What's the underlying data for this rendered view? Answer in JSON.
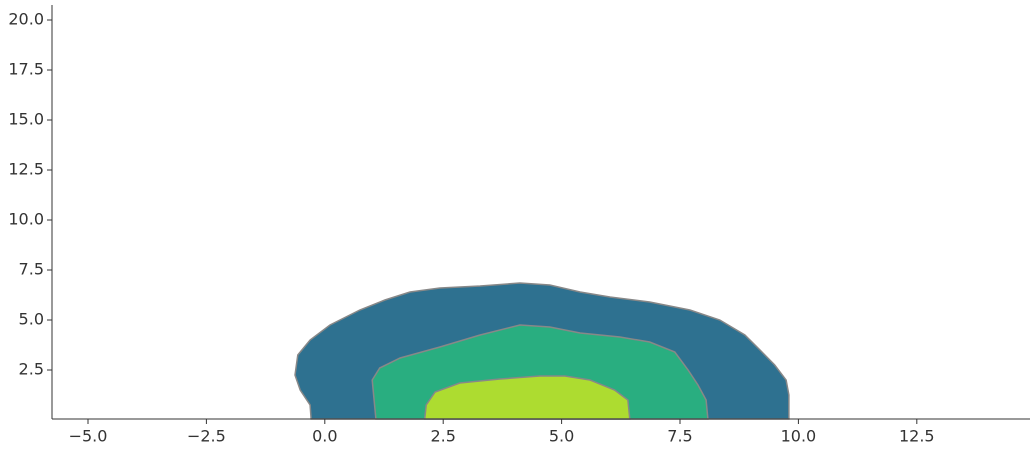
{
  "chart_data": {
    "type": "contour",
    "xlim": [
      -5.76,
      14.89
    ],
    "ylim": [
      0.05,
      20.75
    ],
    "xticks": [
      {
        "value": -5,
        "label": "−5.0"
      },
      {
        "value": -2.5,
        "label": "−2.5"
      },
      {
        "value": 0,
        "label": "0.0"
      },
      {
        "value": 2.5,
        "label": "2.5"
      },
      {
        "value": 5,
        "label": "5.0"
      },
      {
        "value": 7.5,
        "label": "7.5"
      },
      {
        "value": 10,
        "label": "10.0"
      },
      {
        "value": 12.5,
        "label": "12.5"
      }
    ],
    "yticks": [
      {
        "value": 2.5,
        "label": "2.5"
      },
      {
        "value": 5,
        "label": "5.0"
      },
      {
        "value": 7.5,
        "label": "7.5"
      },
      {
        "value": 10,
        "label": "10.0"
      },
      {
        "value": 12.5,
        "label": "12.5"
      },
      {
        "value": 15,
        "label": "15.0"
      },
      {
        "value": 17.5,
        "label": "17.5"
      },
      {
        "value": 20,
        "label": "20.0"
      }
    ],
    "series": [
      {
        "color": "#2e7190",
        "x": [
          -0.29,
          -0.31,
          -0.52,
          -0.63,
          -0.57,
          -0.31,
          0.11,
          0.74,
          1.27,
          1.8,
          2.43,
          3.28,
          4.12,
          4.75,
          5.39,
          6.02,
          6.86,
          7.71,
          8.34,
          8.87,
          9.19,
          9.5,
          9.74,
          9.8,
          9.8
        ],
        "y": [
          0.05,
          0.75,
          1.5,
          2.25,
          3.25,
          4.0,
          4.75,
          5.5,
          6.0,
          6.4,
          6.6,
          6.7,
          6.85,
          6.75,
          6.4,
          6.15,
          5.9,
          5.5,
          5.0,
          4.25,
          3.5,
          2.75,
          2.0,
          1.25,
          0.05
        ]
      },
      {
        "color": "#29ae80",
        "x": [
          1.08,
          1.04,
          1.0,
          1.16,
          1.59,
          2.43,
          3.28,
          4.12,
          4.75,
          5.39,
          6.23,
          6.86,
          7.39,
          7.67,
          7.88,
          8.05,
          8.09
        ],
        "y": [
          0.05,
          1.0,
          2.0,
          2.6,
          3.1,
          3.65,
          4.25,
          4.75,
          4.65,
          4.35,
          4.15,
          3.9,
          3.4,
          2.5,
          1.75,
          1.0,
          0.05
        ]
      },
      {
        "color": "#addc30",
        "x": [
          2.11,
          2.14,
          2.33,
          2.85,
          3.7,
          4.54,
          5.07,
          5.6,
          6.12,
          6.4,
          6.44
        ],
        "y": [
          0.05,
          0.75,
          1.4,
          1.85,
          2.05,
          2.2,
          2.2,
          2.0,
          1.5,
          1.0,
          0.05
        ]
      }
    ]
  }
}
